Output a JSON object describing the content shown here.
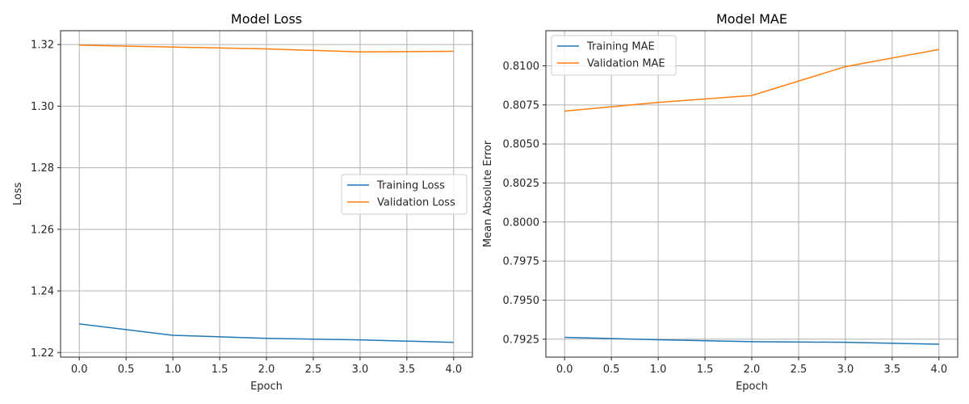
{
  "chart_data": [
    {
      "type": "line",
      "title": "Model Loss",
      "xlabel": "Epoch",
      "ylabel": "Loss",
      "x": [
        0,
        1,
        2,
        3,
        4
      ],
      "xlim": [
        -0.2,
        4.2
      ],
      "ylim": [
        1.2185,
        1.3245
      ],
      "xticks": [
        0.0,
        0.5,
        1.0,
        1.5,
        2.0,
        2.5,
        3.0,
        3.5,
        4.0
      ],
      "xtick_labels": [
        "0.0",
        "0.5",
        "1.0",
        "1.5",
        "2.0",
        "2.5",
        "3.0",
        "3.5",
        "4.0"
      ],
      "yticks": [
        1.22,
        1.24,
        1.26,
        1.28,
        1.3,
        1.32
      ],
      "ytick_labels": [
        "1.22",
        "1.24",
        "1.26",
        "1.28",
        "1.30",
        "1.32"
      ],
      "grid": true,
      "legend_position": "center-right",
      "series": [
        {
          "name": "Training Loss",
          "color": "#1f77b4",
          "values": [
            1.2293,
            1.2256,
            1.2246,
            1.2241,
            1.2233
          ]
        },
        {
          "name": "Validation Loss",
          "color": "#ff7f0e",
          "values": [
            1.3198,
            1.3192,
            1.3186,
            1.3176,
            1.3178
          ]
        }
      ]
    },
    {
      "type": "line",
      "title": "Model MAE",
      "xlabel": "Epoch",
      "ylabel": "Mean Absolute Error",
      "x": [
        0,
        1,
        2,
        3,
        4
      ],
      "xlim": [
        -0.2,
        4.2
      ],
      "ylim": [
        0.79135,
        0.81225
      ],
      "xticks": [
        0.0,
        0.5,
        1.0,
        1.5,
        2.0,
        2.5,
        3.0,
        3.5,
        4.0
      ],
      "xtick_labels": [
        "0.0",
        "0.5",
        "1.0",
        "1.5",
        "2.0",
        "2.5",
        "3.0",
        "3.5",
        "4.0"
      ],
      "yticks": [
        0.7925,
        0.795,
        0.7975,
        0.8,
        0.8025,
        0.805,
        0.8075,
        0.81
      ],
      "ytick_labels": [
        "0.7925",
        "0.7950",
        "0.7975",
        "0.8000",
        "0.8025",
        "0.8050",
        "0.8075",
        "0.8100"
      ],
      "grid": true,
      "legend_position": "upper-left",
      "series": [
        {
          "name": "Training MAE",
          "color": "#1f77b4",
          "values": [
            0.79262,
            0.79246,
            0.79234,
            0.7923,
            0.79218
          ]
        },
        {
          "name": "Validation MAE",
          "color": "#ff7f0e",
          "values": [
            0.8071,
            0.80766,
            0.8081,
            0.80995,
            0.81105
          ]
        }
      ]
    }
  ]
}
